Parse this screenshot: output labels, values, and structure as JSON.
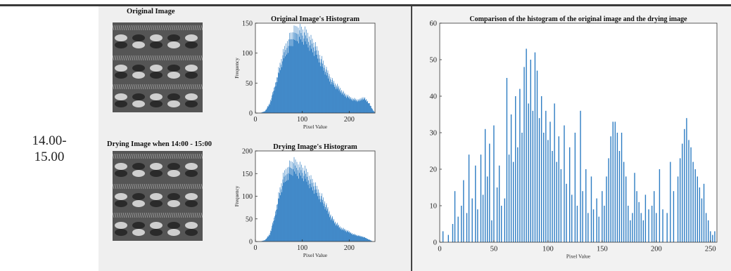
{
  "row_time_label": "14.00-\n15.00",
  "panels": {
    "original_image_title": "Original Image",
    "drying_image_title": "Drying Image when 14:00 - 15:00"
  },
  "chart_data": [
    {
      "type": "bar",
      "title": "Original Image's Histogram",
      "xlabel": "Pixel Value",
      "ylabel": "Frequency",
      "xlim": [
        0,
        255
      ],
      "ylim": [
        0,
        150
      ],
      "xticks": [
        0,
        100,
        200
      ],
      "yticks": [
        0,
        50,
        100,
        150
      ],
      "color": "#2b7bc2",
      "envelope": {
        "x": [
          0,
          10,
          20,
          30,
          40,
          50,
          60,
          70,
          80,
          90,
          100,
          110,
          120,
          130,
          140,
          150,
          160,
          170,
          180,
          190,
          200,
          210,
          220,
          230,
          240,
          250,
          255
        ],
        "y": [
          0,
          0,
          3,
          15,
          40,
          70,
          95,
          115,
          125,
          132,
          128,
          122,
          112,
          100,
          85,
          68,
          55,
          45,
          38,
          30,
          25,
          22,
          20,
          25,
          18,
          5,
          0
        ]
      }
    },
    {
      "type": "bar",
      "title": "Drying Image's Histogram",
      "xlabel": "Pixel Value",
      "ylabel": "Frequency",
      "xlim": [
        0,
        255
      ],
      "ylim": [
        0,
        200
      ],
      "xticks": [
        0,
        100,
        200
      ],
      "yticks": [
        0,
        50,
        100,
        150,
        200
      ],
      "color": "#2b7bc2",
      "envelope": {
        "x": [
          0,
          10,
          20,
          30,
          40,
          50,
          60,
          70,
          80,
          90,
          100,
          110,
          120,
          130,
          140,
          150,
          160,
          170,
          180,
          190,
          200,
          210,
          220,
          230,
          240,
          250,
          255
        ],
        "y": [
          0,
          0,
          3,
          15,
          50,
          100,
          135,
          155,
          162,
          158,
          150,
          140,
          125,
          110,
          95,
          75,
          55,
          40,
          30,
          25,
          20,
          15,
          12,
          10,
          5,
          0,
          0
        ]
      }
    },
    {
      "type": "bar",
      "title": "Comparison of the histogram of the original image and the drying image",
      "xlabel": "Pixel Value",
      "xlim": [
        0,
        256
      ],
      "ylim": [
        0,
        60
      ],
      "xticks": [
        0,
        50,
        100,
        150,
        200,
        250
      ],
      "yticks": [
        0,
        10,
        20,
        30,
        40,
        50,
        60
      ],
      "color": "#2b7bc2",
      "bars": [
        [
          3,
          3
        ],
        [
          8,
          2
        ],
        [
          12,
          5
        ],
        [
          14,
          14
        ],
        [
          17,
          7
        ],
        [
          20,
          10
        ],
        [
          22,
          17
        ],
        [
          25,
          8
        ],
        [
          27,
          24
        ],
        [
          30,
          12
        ],
        [
          33,
          21
        ],
        [
          35,
          9
        ],
        [
          38,
          24
        ],
        [
          40,
          13
        ],
        [
          42,
          31
        ],
        [
          44,
          18
        ],
        [
          46,
          27
        ],
        [
          48,
          6
        ],
        [
          50,
          32
        ],
        [
          53,
          15
        ],
        [
          55,
          21
        ],
        [
          57,
          10
        ],
        [
          60,
          12
        ],
        [
          62,
          45
        ],
        [
          64,
          24
        ],
        [
          66,
          35
        ],
        [
          68,
          22
        ],
        [
          70,
          40
        ],
        [
          72,
          26
        ],
        [
          74,
          42
        ],
        [
          76,
          30
        ],
        [
          78,
          48
        ],
        [
          80,
          53
        ],
        [
          82,
          38
        ],
        [
          84,
          50
        ],
        [
          86,
          36
        ],
        [
          88,
          52
        ],
        [
          90,
          47
        ],
        [
          92,
          34
        ],
        [
          94,
          40
        ],
        [
          96,
          30
        ],
        [
          98,
          36
        ],
        [
          100,
          28
        ],
        [
          102,
          33
        ],
        [
          104,
          25
        ],
        [
          106,
          38
        ],
        [
          108,
          22
        ],
        [
          110,
          29
        ],
        [
          112,
          20
        ],
        [
          115,
          32
        ],
        [
          117,
          16
        ],
        [
          120,
          26
        ],
        [
          122,
          13
        ],
        [
          125,
          30
        ],
        [
          127,
          10
        ],
        [
          130,
          36
        ],
        [
          132,
          14
        ],
        [
          135,
          20
        ],
        [
          137,
          8
        ],
        [
          140,
          18
        ],
        [
          142,
          9
        ],
        [
          145,
          12
        ],
        [
          147,
          7
        ],
        [
          150,
          14
        ],
        [
          152,
          10
        ],
        [
          154,
          18
        ],
        [
          156,
          23
        ],
        [
          158,
          29
        ],
        [
          160,
          33
        ],
        [
          162,
          33
        ],
        [
          164,
          30
        ],
        [
          166,
          25
        ],
        [
          168,
          30
        ],
        [
          170,
          22
        ],
        [
          172,
          18
        ],
        [
          174,
          10
        ],
        [
          176,
          6
        ],
        [
          178,
          8
        ],
        [
          180,
          19
        ],
        [
          182,
          14
        ],
        [
          184,
          11
        ],
        [
          186,
          8
        ],
        [
          188,
          6
        ],
        [
          190,
          13
        ],
        [
          193,
          9
        ],
        [
          196,
          10
        ],
        [
          198,
          14
        ],
        [
          200,
          8
        ],
        [
          203,
          20
        ],
        [
          206,
          9
        ],
        [
          210,
          8
        ],
        [
          213,
          22
        ],
        [
          216,
          14
        ],
        [
          220,
          18
        ],
        [
          222,
          23
        ],
        [
          224,
          27
        ],
        [
          226,
          31
        ],
        [
          228,
          34
        ],
        [
          230,
          28
        ],
        [
          232,
          26
        ],
        [
          234,
          22
        ],
        [
          236,
          20
        ],
        [
          238,
          18
        ],
        [
          240,
          15
        ],
        [
          242,
          12
        ],
        [
          244,
          16
        ],
        [
          246,
          8
        ],
        [
          248,
          6
        ],
        [
          250,
          3
        ],
        [
          252,
          2
        ],
        [
          254,
          3
        ]
      ]
    }
  ]
}
